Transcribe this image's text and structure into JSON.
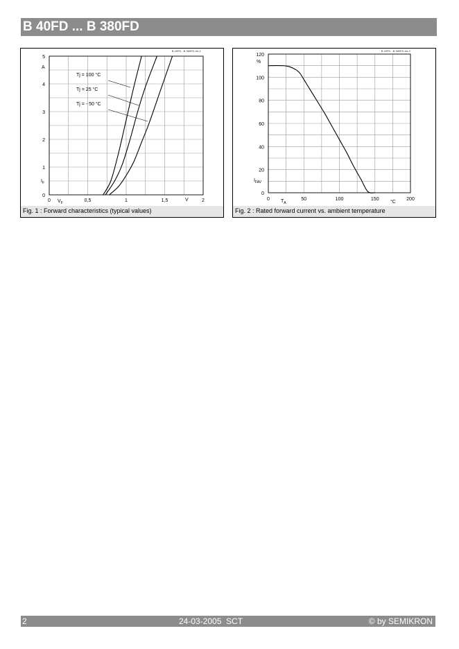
{
  "header": {
    "title": "B 40FD ... B 380FD"
  },
  "footer": {
    "page": "2",
    "date": "24-03-2005  SCT",
    "copyright": "© by SEMIKRON"
  },
  "figures": [
    {
      "caption": "Fig. 1 : Forward characteristics (typical values)",
      "file_label": "B 40FD...B 380FD.xls-1"
    },
    {
      "caption": "Fig. 2 : Rated forward current vs. ambient temperature",
      "file_label": "B 40FD...B 380FD.xls-2"
    }
  ],
  "chart_data": [
    {
      "type": "line",
      "xlabel": "V",
      "x_symbol": "VF",
      "ylabel": "A",
      "y_symbol": "IF",
      "xlim": [
        0,
        2
      ],
      "ylim": [
        0,
        5
      ],
      "x_ticks": [
        "0",
        "0,5",
        "1",
        "1,5",
        "2"
      ],
      "y_ticks": [
        "0",
        "1",
        "2",
        "3",
        "4",
        "5"
      ],
      "grid": true,
      "series": [
        {
          "name": "Tj = 100 °C",
          "x": [
            0.7,
            0.8,
            0.9,
            1.0,
            1.1,
            1.2
          ],
          "y": [
            0.0,
            0.5,
            1.5,
            2.7,
            3.9,
            5.0
          ]
        },
        {
          "name": "Tj =  25 °C",
          "x": [
            0.73,
            0.85,
            0.95,
            1.05,
            1.15,
            1.25,
            1.4
          ],
          "y": [
            0.0,
            0.5,
            1.1,
            2.0,
            3.0,
            3.9,
            5.0
          ]
        },
        {
          "name": "Tj =  - 50 °C",
          "x": [
            0.78,
            0.9,
            1.0,
            1.1,
            1.2,
            1.3,
            1.45,
            1.6
          ],
          "y": [
            0.0,
            0.3,
            0.7,
            1.2,
            1.9,
            2.6,
            3.8,
            5.0
          ]
        }
      ]
    },
    {
      "type": "line",
      "xlabel": "°C",
      "x_symbol": "TA",
      "ylabel": "%",
      "y_symbol": "IFAV",
      "xlim": [
        0,
        200
      ],
      "ylim": [
        0,
        120
      ],
      "x_ticks": [
        "0",
        "50",
        "100",
        "150",
        "200"
      ],
      "y_ticks": [
        "0",
        "20",
        "40",
        "60",
        "80",
        "100",
        "120"
      ],
      "grid": true,
      "series": [
        {
          "x": [
            0,
            20,
            30,
            40,
            45,
            50,
            60,
            70,
            80,
            90,
            100,
            110,
            120,
            130,
            140,
            150
          ],
          "y": [
            110,
            110,
            109,
            106,
            103,
            98,
            88,
            78,
            68,
            57,
            46,
            35,
            23,
            12,
            1,
            0
          ]
        }
      ]
    }
  ]
}
